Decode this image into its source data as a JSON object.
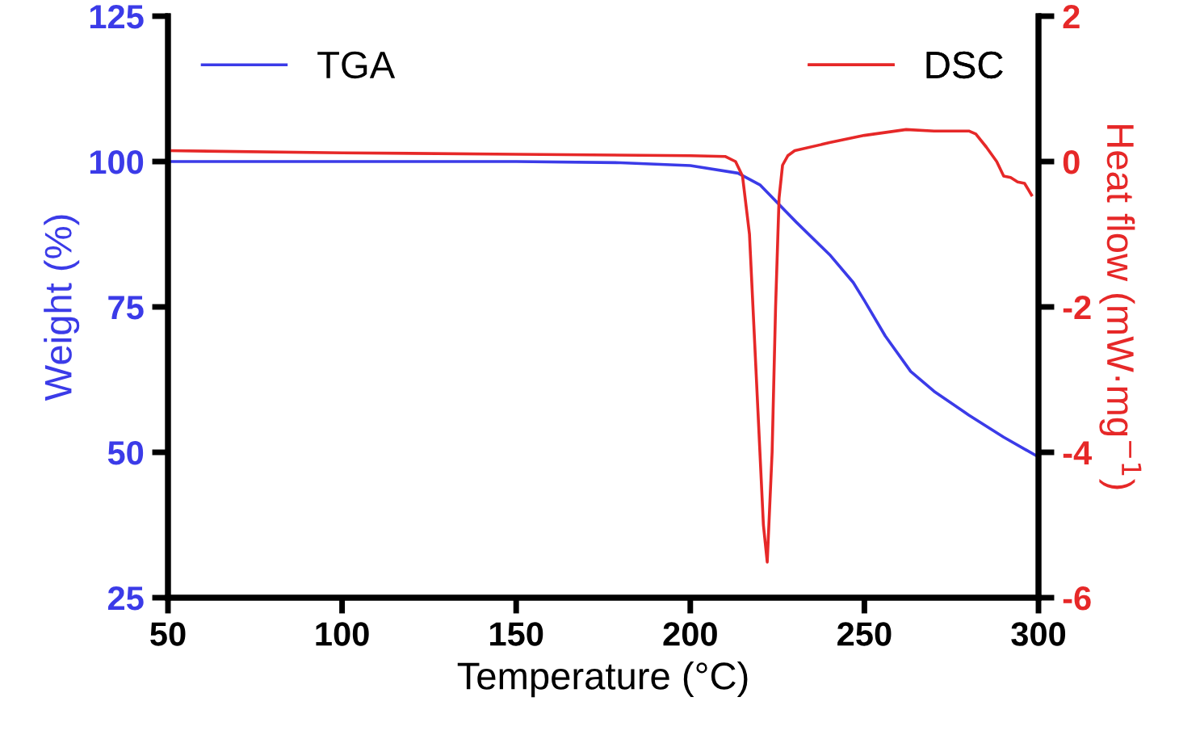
{
  "chart_data": {
    "type": "line",
    "xlabel": "Temperature (°C)",
    "ylabel": "Weight (%)",
    "y2label": "Heat flow (mW·mg$^{−1}$)",
    "xlim": [
      50,
      300
    ],
    "xticks": [
      50,
      100,
      150,
      200,
      250,
      300
    ],
    "ylim": [
      25,
      125
    ],
    "yticks": [
      25,
      50,
      75,
      100,
      125
    ],
    "y2lim": [
      -6,
      2
    ],
    "y2ticks": [
      -6,
      -4,
      -2,
      0,
      2
    ],
    "legend": "top",
    "grid": false,
    "marker": "none",
    "line_style": "solid",
    "series": [
      {
        "name": "TGA",
        "color": "#3b3be8",
        "axis": "y",
        "x": [
          50,
          100,
          150,
          180,
          200,
          213.7,
          220,
          230.4,
          240,
          246.8,
          250,
          256,
          263.3,
          270,
          280,
          290,
          300
        ],
        "values": [
          100,
          100,
          100,
          99.8,
          99.3,
          98,
          96,
          89.6,
          84,
          79.2,
          76.1,
          70,
          63.9,
          60.5,
          56.4,
          52.6,
          49.2
        ]
      },
      {
        "name": "DSC",
        "color": "#e62828",
        "axis": "y2",
        "x": [
          50,
          100,
          150,
          200,
          210,
          213,
          215,
          217,
          219,
          221,
          222.1,
          223.5,
          224.5,
          225.5,
          226.5,
          228,
          230,
          240,
          250,
          262,
          270,
          280,
          282,
          285,
          288,
          290,
          292,
          294,
          296,
          298
        ],
        "values": [
          0.15,
          0.12,
          0.1,
          0.08,
          0.07,
          0.0,
          -0.2,
          -1.0,
          -3.0,
          -5.0,
          -5.51,
          -4.0,
          -2.0,
          -0.5,
          -0.05,
          0.08,
          0.15,
          0.26,
          0.36,
          0.44,
          0.42,
          0.42,
          0.38,
          0.2,
          0.0,
          -0.2,
          -0.22,
          -0.28,
          -0.3,
          -0.46
        ]
      }
    ]
  }
}
